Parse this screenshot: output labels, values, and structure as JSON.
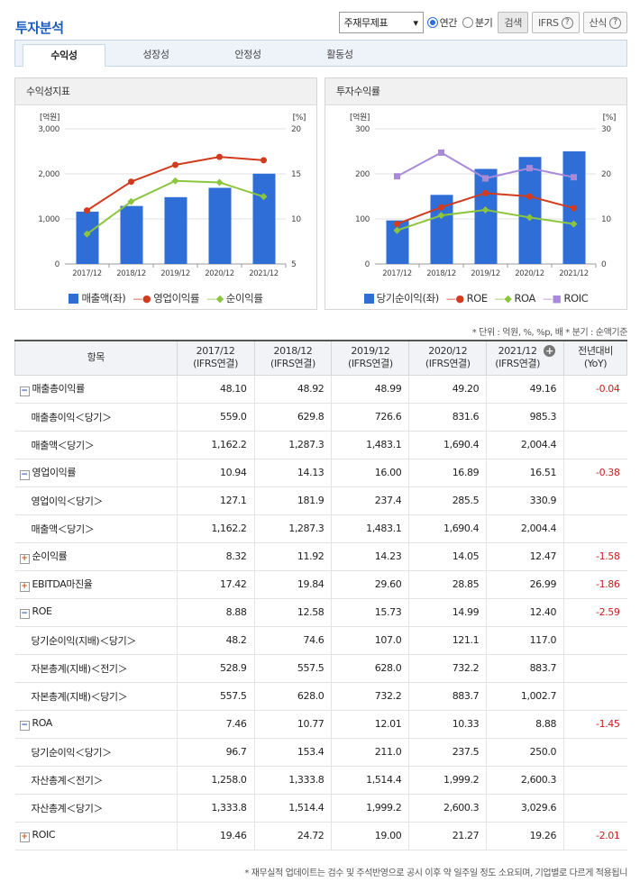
{
  "header": {
    "title": "투자분석"
  },
  "controls": {
    "select_value": "주재무제표",
    "radio_annual": "연간",
    "radio_quarter": "분기",
    "search_label": "검색",
    "ifrs_label": "IFRS",
    "formula_label": "산식",
    "help_glyph": "?"
  },
  "tabs": [
    "수익성",
    "성장성",
    "안정성",
    "활동성"
  ],
  "panels": {
    "left_title": "수익성지표",
    "right_title": "투자수익률"
  },
  "chart_data": [
    {
      "type": "bar+line",
      "title": "수익성지표",
      "categories": [
        "2017/12",
        "2018/12",
        "2019/12",
        "2020/12",
        "2021/12"
      ],
      "left_axis": {
        "unit": "[억원]",
        "ticks": [
          "3,000",
          "2,000",
          "1,000",
          "0"
        ],
        "range": [
          0,
          3000
        ]
      },
      "right_axis": {
        "unit": "[%]",
        "ticks": [
          "20",
          "15",
          "10",
          "5"
        ],
        "range": [
          5,
          20
        ]
      },
      "series": [
        {
          "name": "매출액(좌)",
          "kind": "bar",
          "axis": "left",
          "color": "#2e6ed6",
          "values": [
            1162.2,
            1287.3,
            1483.1,
            1690.4,
            2004.4
          ]
        },
        {
          "name": "영업이익률",
          "kind": "line",
          "axis": "right",
          "color": "#d23c1e",
          "values": [
            10.94,
            14.13,
            16.0,
            16.89,
            16.51
          ]
        },
        {
          "name": "순이익률",
          "kind": "line",
          "axis": "right",
          "color": "#8cc63e",
          "values": [
            8.32,
            11.92,
            14.23,
            14.05,
            12.47
          ]
        }
      ]
    },
    {
      "type": "bar+line",
      "title": "투자수익률",
      "categories": [
        "2017/12",
        "2018/12",
        "2019/12",
        "2020/12",
        "2021/12"
      ],
      "left_axis": {
        "unit": "[억원]",
        "ticks": [
          "300",
          "200",
          "100",
          "0"
        ],
        "range": [
          0,
          300
        ]
      },
      "right_axis": {
        "unit": "[%]",
        "ticks": [
          "30",
          "20",
          "10",
          "0"
        ],
        "range": [
          0,
          30
        ]
      },
      "series": [
        {
          "name": "당기순이익(좌)",
          "kind": "bar",
          "axis": "left",
          "color": "#2e6ed6",
          "values": [
            96.7,
            153.4,
            211.0,
            237.5,
            250.0
          ]
        },
        {
          "name": "ROE",
          "kind": "line",
          "axis": "right",
          "color": "#d23c1e",
          "values": [
            8.88,
            12.58,
            15.73,
            14.99,
            12.4
          ]
        },
        {
          "name": "ROA",
          "kind": "line",
          "axis": "right",
          "color": "#8cc63e",
          "values": [
            7.46,
            10.77,
            12.01,
            10.33,
            8.88
          ]
        },
        {
          "name": "ROIC",
          "kind": "line",
          "axis": "right",
          "color": "#a88ad8",
          "values": [
            19.46,
            24.72,
            19.0,
            21.27,
            19.26
          ]
        }
      ]
    }
  ],
  "notes": {
    "units": "* 단위 : 억원, %, %p, 배    * 분기 : 순액기준",
    "footer": "* 재무실적 업데이트는 검수 및 주석반영으로 공시 이후 약 일주일 정도 소요되며, 기업별로 다르게 적용됩니"
  },
  "table": {
    "headers": [
      "항목",
      "2017/12\n(IFRS연결)",
      "2018/12\n(IFRS연결)",
      "2019/12\n(IFRS연결)",
      "2020/12\n(IFRS연결)",
      "2021/12\n(IFRS연결)",
      "전년대비\n(YoY)"
    ],
    "add_glyph": "+",
    "rows": [
      {
        "label": "매출총이익률",
        "toggle": "minus",
        "values": [
          "48.10",
          "48.92",
          "48.99",
          "49.20",
          "49.16",
          "-0.04"
        ]
      },
      {
        "label": "매출총이익＜당기＞",
        "sub": true,
        "values": [
          "559.0",
          "629.8",
          "726.6",
          "831.6",
          "985.3",
          ""
        ]
      },
      {
        "label": "매출액＜당기＞",
        "sub": true,
        "values": [
          "1,162.2",
          "1,287.3",
          "1,483.1",
          "1,690.4",
          "2,004.4",
          ""
        ]
      },
      {
        "label": "영업이익률",
        "toggle": "minus",
        "values": [
          "10.94",
          "14.13",
          "16.00",
          "16.89",
          "16.51",
          "-0.38"
        ]
      },
      {
        "label": "영업이익＜당기＞",
        "sub": true,
        "values": [
          "127.1",
          "181.9",
          "237.4",
          "285.5",
          "330.9",
          ""
        ]
      },
      {
        "label": "매출액＜당기＞",
        "sub": true,
        "values": [
          "1,162.2",
          "1,287.3",
          "1,483.1",
          "1,690.4",
          "2,004.4",
          ""
        ]
      },
      {
        "label": "순이익률",
        "toggle": "plus",
        "values": [
          "8.32",
          "11.92",
          "14.23",
          "14.05",
          "12.47",
          "-1.58"
        ]
      },
      {
        "label": "EBITDA마진율",
        "toggle": "plus",
        "values": [
          "17.42",
          "19.84",
          "29.60",
          "28.85",
          "26.99",
          "-1.86"
        ]
      },
      {
        "label": "ROE",
        "toggle": "minus",
        "values": [
          "8.88",
          "12.58",
          "15.73",
          "14.99",
          "12.40",
          "-2.59"
        ]
      },
      {
        "label": "당기순이익(지배)＜당기＞",
        "sub": true,
        "values": [
          "48.2",
          "74.6",
          "107.0",
          "121.1",
          "117.0",
          ""
        ]
      },
      {
        "label": "자본총계(지배)＜전기＞",
        "sub": true,
        "values": [
          "528.9",
          "557.5",
          "628.0",
          "732.2",
          "883.7",
          ""
        ]
      },
      {
        "label": "자본총계(지배)＜당기＞",
        "sub": true,
        "values": [
          "557.5",
          "628.0",
          "732.2",
          "883.7",
          "1,002.7",
          ""
        ]
      },
      {
        "label": "ROA",
        "toggle": "minus",
        "values": [
          "7.46",
          "10.77",
          "12.01",
          "10.33",
          "8.88",
          "-1.45"
        ]
      },
      {
        "label": "당기순이익＜당기＞",
        "sub": true,
        "values": [
          "96.7",
          "153.4",
          "211.0",
          "237.5",
          "250.0",
          ""
        ]
      },
      {
        "label": "자산총계＜전기＞",
        "sub": true,
        "values": [
          "1,258.0",
          "1,333.8",
          "1,514.4",
          "1,999.2",
          "2,600.3",
          ""
        ]
      },
      {
        "label": "자산총계＜당기＞",
        "sub": true,
        "values": [
          "1,333.8",
          "1,514.4",
          "1,999.2",
          "2,600.3",
          "3,029.6",
          ""
        ]
      },
      {
        "label": "ROIC",
        "toggle": "plus",
        "values": [
          "19.46",
          "24.72",
          "19.00",
          "21.27",
          "19.26",
          "-2.01"
        ]
      }
    ]
  }
}
